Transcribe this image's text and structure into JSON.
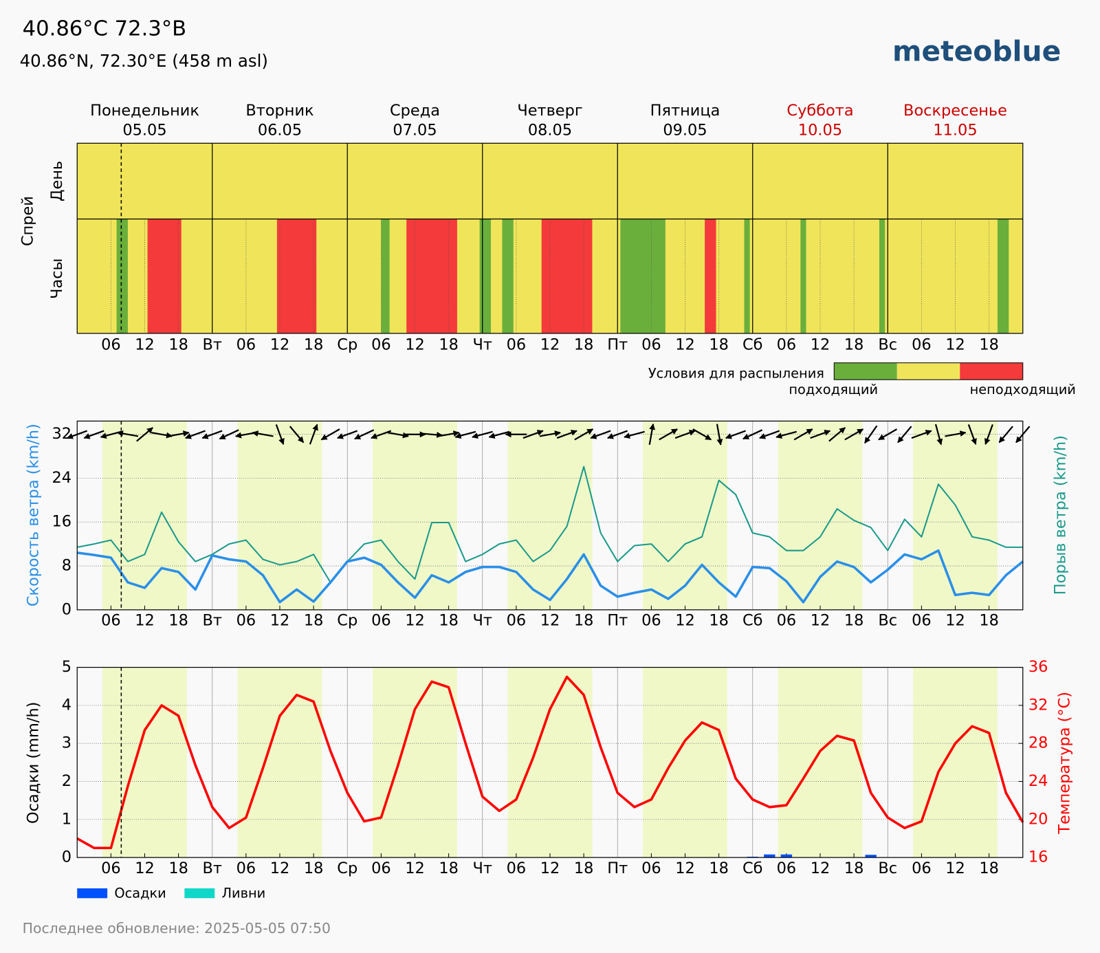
{
  "header": {
    "title": "40.86°C 72.3°B",
    "subtitle": "40.86°N, 72.30°E (458 m asl)",
    "logo": "meteoblue"
  },
  "footer": "Последнее обновление: 2025-05-05 07:50",
  "time_axis": {
    "xlim": [
      0,
      168
    ],
    "now": 7.83,
    "xticks": [
      {
        "value": 6,
        "label": "06"
      },
      12,
      18,
      {
        "value": 24,
        "label": "Вт"
      },
      {
        "value": 30,
        "label": "06"
      },
      {
        "value": 36,
        "label": "12"
      },
      {
        "value": 42,
        "label": "18"
      },
      {
        "value": 48,
        "label": "Ср"
      },
      {
        "value": 54,
        "label": "06"
      },
      {
        "value": 60,
        "label": "12"
      },
      {
        "value": 66,
        "label": "18"
      },
      {
        "value": 72,
        "label": "Чт"
      },
      {
        "value": 78,
        "label": "06"
      },
      {
        "value": 84,
        "label": "12"
      },
      {
        "value": 90,
        "label": "18"
      },
      {
        "value": 96,
        "label": "Пт"
      },
      {
        "value": 102,
        "label": "06"
      },
      {
        "value": 108,
        "label": "12"
      },
      {
        "value": 114,
        "label": "18"
      },
      {
        "value": 120,
        "label": "Сб"
      },
      {
        "value": 126,
        "label": "06"
      },
      {
        "value": 132,
        "label": "12"
      },
      {
        "value": 138,
        "label": "18"
      },
      {
        "value": 144,
        "label": "Вс"
      },
      {
        "value": 150,
        "label": "06"
      },
      {
        "value": 156,
        "label": "12"
      },
      {
        "value": 162,
        "label": "18"
      }
    ]
  },
  "daylight": {
    "sunrise": 4.5,
    "sunset": 19.5,
    "color": "#f0f8c8"
  },
  "chart_data": [
    {
      "type": "spray",
      "label": "Спрей",
      "row_labels": [
        "День",
        "Часы"
      ],
      "days": [
        {
          "name": "Понедельник",
          "date": "05.05",
          "color": "#000000"
        },
        {
          "name": "Вторник",
          "date": "06.05",
          "color": "#000000"
        },
        {
          "name": "Среда",
          "date": "07.05",
          "color": "#000000"
        },
        {
          "name": "Четверг",
          "date": "08.05",
          "color": "#000000"
        },
        {
          "name": "Пятница",
          "date": "09.05",
          "color": "#000000"
        },
        {
          "name": "Суббота",
          "date": "10.05",
          "color": "#cc0000"
        },
        {
          "name": "Воскресенье",
          "date": "11.05",
          "color": "#cc0000"
        }
      ],
      "day_colors": [
        "#f0e55a",
        "#f0e55a",
        "#f0e55a",
        "#f0e55a",
        "#f0e55a",
        "#f0e55a",
        "#f0e55a"
      ],
      "base_color": "#f0e55a",
      "hour_segments": [
        {
          "start": 7,
          "end": 9,
          "color": "#6aaf3c"
        },
        {
          "start": 12.5,
          "end": 18.5,
          "color": "#f43a3a"
        },
        {
          "start": 35.5,
          "end": 42.5,
          "color": "#f43a3a"
        },
        {
          "start": 54,
          "end": 55.5,
          "color": "#6aaf3c"
        },
        {
          "start": 58.5,
          "end": 67.5,
          "color": "#f43a3a"
        },
        {
          "start": 71.5,
          "end": 73.5,
          "color": "#6aaf3c"
        },
        {
          "start": 75.5,
          "end": 77.5,
          "color": "#6aaf3c"
        },
        {
          "start": 82.5,
          "end": 91.5,
          "color": "#f43a3a"
        },
        {
          "start": 96.5,
          "end": 104.5,
          "color": "#6aaf3c"
        },
        {
          "start": 111.5,
          "end": 113.5,
          "color": "#f43a3a"
        },
        {
          "start": 118.5,
          "end": 119.5,
          "color": "#6aaf3c"
        },
        {
          "start": 128.5,
          "end": 129.5,
          "color": "#6aaf3c"
        },
        {
          "start": 142.5,
          "end": 143.5,
          "color": "#6aaf3c"
        },
        {
          "start": 163.5,
          "end": 165.5,
          "color": "#6aaf3c"
        }
      ],
      "legend": {
        "title": "Условия для распыления",
        "colors": [
          "#6aaf3c",
          "#f0e55a",
          "#f43a3a"
        ],
        "low": "подходящий",
        "high": "неподходящий"
      }
    },
    {
      "type": "line",
      "ylabel": "Скорость ветра (km/h)",
      "y2label": "Порыв ветра (km/h)",
      "ylim": [
        0,
        34.4
      ],
      "yticks": [
        0,
        8,
        16,
        24,
        32
      ],
      "grid": true,
      "x": [
        0,
        3,
        6,
        9,
        12,
        15,
        18,
        21,
        24,
        27,
        30,
        33,
        36,
        39,
        42,
        45,
        48,
        51,
        54,
        57,
        60,
        63,
        66,
        69,
        72,
        75,
        78,
        81,
        84,
        87,
        90,
        93,
        96,
        99,
        102,
        105,
        108,
        111,
        114,
        117,
        120,
        123,
        126,
        129,
        132,
        135,
        138,
        141,
        144,
        147,
        150,
        153,
        156,
        159,
        162,
        165,
        168
      ],
      "series": [
        {
          "color": "#2a8fe8",
          "values": [
            10.4,
            10.0,
            9.5,
            5.0,
            4.0,
            7.6,
            6.9,
            3.7,
            9.9,
            9.2,
            8.8,
            6.3,
            1.4,
            3.7,
            1.5,
            5.0,
            8.8,
            9.5,
            8.2,
            5.0,
            2.2,
            6.3,
            5.0,
            6.9,
            7.8,
            7.8,
            6.9,
            3.7,
            1.8,
            5.6,
            10.1,
            4.4,
            2.4,
            3.1,
            3.7,
            2.0,
            4.4,
            8.2,
            5.0,
            2.4,
            7.8,
            7.6,
            5.2,
            1.4,
            6.0,
            8.8,
            7.8,
            5.0,
            7.3,
            10.1,
            9.2,
            10.8,
            2.7,
            3.1,
            2.7,
            6.3,
            8.8
          ]
        },
        {
          "color": "#1a9a8a",
          "values": [
            11.4,
            12.0,
            12.7,
            8.8,
            10.1,
            17.8,
            12.4,
            8.8,
            10.1,
            12.0,
            12.7,
            9.2,
            8.2,
            8.8,
            10.1,
            5.0,
            8.8,
            12.0,
            12.7,
            8.8,
            5.6,
            15.9,
            15.9,
            8.8,
            10.1,
            12.0,
            12.7,
            8.8,
            10.8,
            15.2,
            26.1,
            14.0,
            8.8,
            11.7,
            12.0,
            8.8,
            12.0,
            13.3,
            23.6,
            21.0,
            14.0,
            13.3,
            10.8,
            10.8,
            13.3,
            18.4,
            16.3,
            15.0,
            10.8,
            16.5,
            13.3,
            22.9,
            19.1,
            13.3,
            12.7,
            11.4,
            11.4
          ]
        }
      ],
      "wind_direction": [
        70,
        70,
        75,
        100,
        230,
        280,
        260,
        70,
        70,
        65,
        80,
        100,
        340,
        320,
        200,
        60,
        70,
        65,
        70,
        280,
        270,
        275,
        260,
        75,
        75,
        75,
        90,
        250,
        260,
        250,
        240,
        70,
        70,
        75,
        190,
        240,
        250,
        300,
        350,
        70,
        65,
        70,
        75,
        240,
        250,
        230,
        240,
        35,
        60,
        40,
        250,
        345,
        260,
        340,
        20,
        40,
        40
      ]
    },
    {
      "type": "bar_line",
      "ylabel": "Осадки (mm/h)",
      "y2label": "Температура (°C)",
      "ylim": [
        0,
        5
      ],
      "yticks": [
        0,
        1,
        2,
        3,
        4,
        5
      ],
      "y2lim": [
        16,
        36
      ],
      "y2ticks": [
        16,
        20,
        24,
        28,
        32,
        36
      ],
      "y2color": "#ff0000",
      "x": [
        0,
        3,
        6,
        9,
        12,
        15,
        18,
        21,
        24,
        27,
        30,
        33,
        36,
        39,
        42,
        45,
        48,
        51,
        54,
        57,
        60,
        63,
        66,
        69,
        72,
        75,
        78,
        81,
        84,
        87,
        90,
        93,
        96,
        99,
        102,
        105,
        108,
        111,
        114,
        117,
        120,
        123,
        126,
        129,
        132,
        135,
        138,
        141,
        144,
        147,
        150,
        153,
        156,
        159,
        162,
        165,
        168
      ],
      "series": [
        {
          "name": "Осадки",
          "type": "bar",
          "color": "#0050ff",
          "values": [
            0,
            0,
            0,
            0,
            0,
            0,
            0,
            0,
            0,
            0,
            0,
            0,
            0,
            0,
            0,
            0,
            0,
            0,
            0,
            0,
            0,
            0,
            0,
            0,
            0,
            0,
            0,
            0,
            0,
            0,
            0,
            0,
            0,
            0,
            0,
            0,
            0,
            0,
            0,
            0,
            0.02,
            0.08,
            0.08,
            0,
            0,
            0,
            0,
            0.07,
            0,
            0,
            0,
            0,
            0,
            0,
            0,
            0,
            0
          ]
        },
        {
          "name": "Ливни",
          "type": "bar",
          "color": "#10d8c8",
          "values": [
            0,
            0,
            0,
            0,
            0,
            0,
            0,
            0,
            0,
            0,
            0,
            0,
            0,
            0,
            0,
            0,
            0,
            0,
            0,
            0,
            0,
            0,
            0,
            0,
            0,
            0,
            0,
            0,
            0,
            0,
            0,
            0,
            0,
            0,
            0,
            0,
            0,
            0,
            0,
            0,
            0,
            0,
            0,
            0,
            0,
            0,
            0,
            0,
            0,
            0,
            0,
            0,
            0,
            0,
            0,
            0,
            0
          ]
        },
        {
          "type": "line",
          "axis": "y2",
          "color": "#ff0000",
          "values": [
            18.0,
            17.0,
            17.0,
            23.5,
            29.4,
            32.0,
            30.9,
            25.7,
            21.3,
            19.1,
            20.2,
            25.4,
            30.9,
            33.1,
            32.4,
            27.2,
            22.8,
            19.8,
            20.2,
            25.7,
            31.6,
            34.5,
            33.9,
            28.0,
            22.4,
            20.9,
            22.1,
            26.5,
            31.6,
            35.0,
            33.1,
            27.6,
            22.8,
            21.3,
            22.1,
            25.4,
            28.3,
            30.2,
            29.4,
            24.3,
            22.1,
            21.3,
            21.5,
            24.3,
            27.2,
            28.8,
            28.3,
            22.8,
            20.2,
            19.1,
            19.8,
            25.0,
            28.0,
            29.8,
            29.1,
            22.8,
            19.7
          ]
        }
      ]
    }
  ]
}
